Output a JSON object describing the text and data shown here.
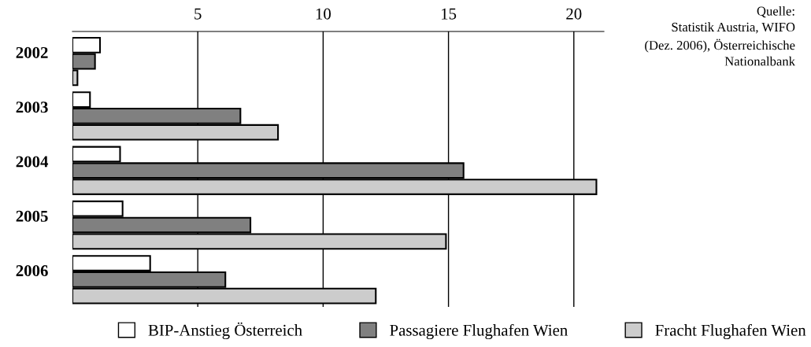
{
  "chart_data": {
    "type": "bar",
    "orientation": "horizontal",
    "categories": [
      "2002",
      "2003",
      "2004",
      "2005",
      "2006"
    ],
    "series": [
      {
        "name": "BIP-Anstieg Österreich",
        "color": "#ffffff",
        "values": [
          1.1,
          0.7,
          1.9,
          2.0,
          3.1
        ]
      },
      {
        "name": "Passagiere Flughafen Wien",
        "color": "#808080",
        "values": [
          0.9,
          6.7,
          15.6,
          7.1,
          6.1
        ]
      },
      {
        "name": "Fracht Flughafen Wien",
        "color": "#cccccc",
        "values": [
          0.2,
          8.2,
          20.9,
          14.9,
          12.1
        ]
      }
    ],
    "xlim": [
      0,
      21.2
    ],
    "xticks": [
      5,
      10,
      15,
      20
    ],
    "grid": "x",
    "legend": "bottom",
    "annotations": [
      "Quelle:\nStatistik Austria, WIFO\n(Dez. 2006), Österreichische\nNationalbank"
    ]
  }
}
